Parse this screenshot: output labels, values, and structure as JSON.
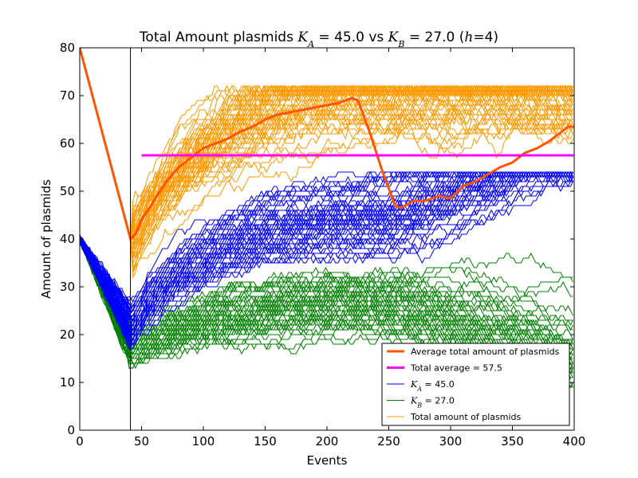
{
  "chart_data": {
    "type": "line",
    "title_parts": [
      "Total Amount plasmids ",
      "K",
      "A",
      " = 45.0 vs ",
      "K",
      "B",
      " = 27.0 (",
      "h",
      "=4)"
    ],
    "xlabel": "Events",
    "ylabel": "Amount of plasmids",
    "xlim": [
      0,
      400
    ],
    "ylim": [
      0,
      80
    ],
    "xticks": [
      0,
      50,
      100,
      150,
      200,
      250,
      300,
      350,
      400
    ],
    "yticks": [
      0,
      10,
      20,
      30,
      40,
      50,
      60,
      70,
      80
    ],
    "grid": false,
    "legend_position": "lower-right",
    "vline_x": 41,
    "colors": {
      "average": "#ff5500",
      "total_average": "#ff00ff",
      "ka": "#0000ff",
      "kb": "#008000",
      "total": "#ff9900",
      "axes": "#000000"
    },
    "series": [
      {
        "key": "average",
        "name": "Average total amount of plasmids",
        "x": [
          0,
          41,
          45,
          50,
          60,
          70,
          80,
          90,
          100,
          110,
          120,
          130,
          140,
          150,
          160,
          170,
          180,
          190,
          200,
          210,
          220,
          225,
          235,
          245,
          255,
          260,
          270,
          280,
          290,
          300,
          310,
          320,
          330,
          340,
          350,
          360,
          370,
          380,
          390,
          395,
          400
        ],
        "y": [
          80,
          40,
          41,
          44,
          48,
          52,
          55,
          57,
          59,
          60,
          61,
          62.5,
          63.5,
          65,
          66,
          66.5,
          67,
          67.5,
          68,
          68.5,
          69.5,
          69,
          62,
          54,
          47,
          46.5,
          48,
          48,
          49,
          48.5,
          51,
          52,
          53.5,
          55,
          56,
          58,
          59,
          60.5,
          62.5,
          63.5,
          63.5
        ]
      },
      {
        "key": "total_average",
        "name_parts": [
          "Total average = 57.5"
        ],
        "x": [
          50,
          400
        ],
        "y": [
          57.5,
          57.5
        ]
      },
      {
        "key": "ka",
        "name_parts": [
          "K",
          "A",
          " = 45.0"
        ]
      },
      {
        "key": "kb",
        "name_parts": [
          "K",
          "B",
          " = 27.0"
        ]
      },
      {
        "key": "total",
        "name": "Total amount of plasmids"
      }
    ]
  }
}
